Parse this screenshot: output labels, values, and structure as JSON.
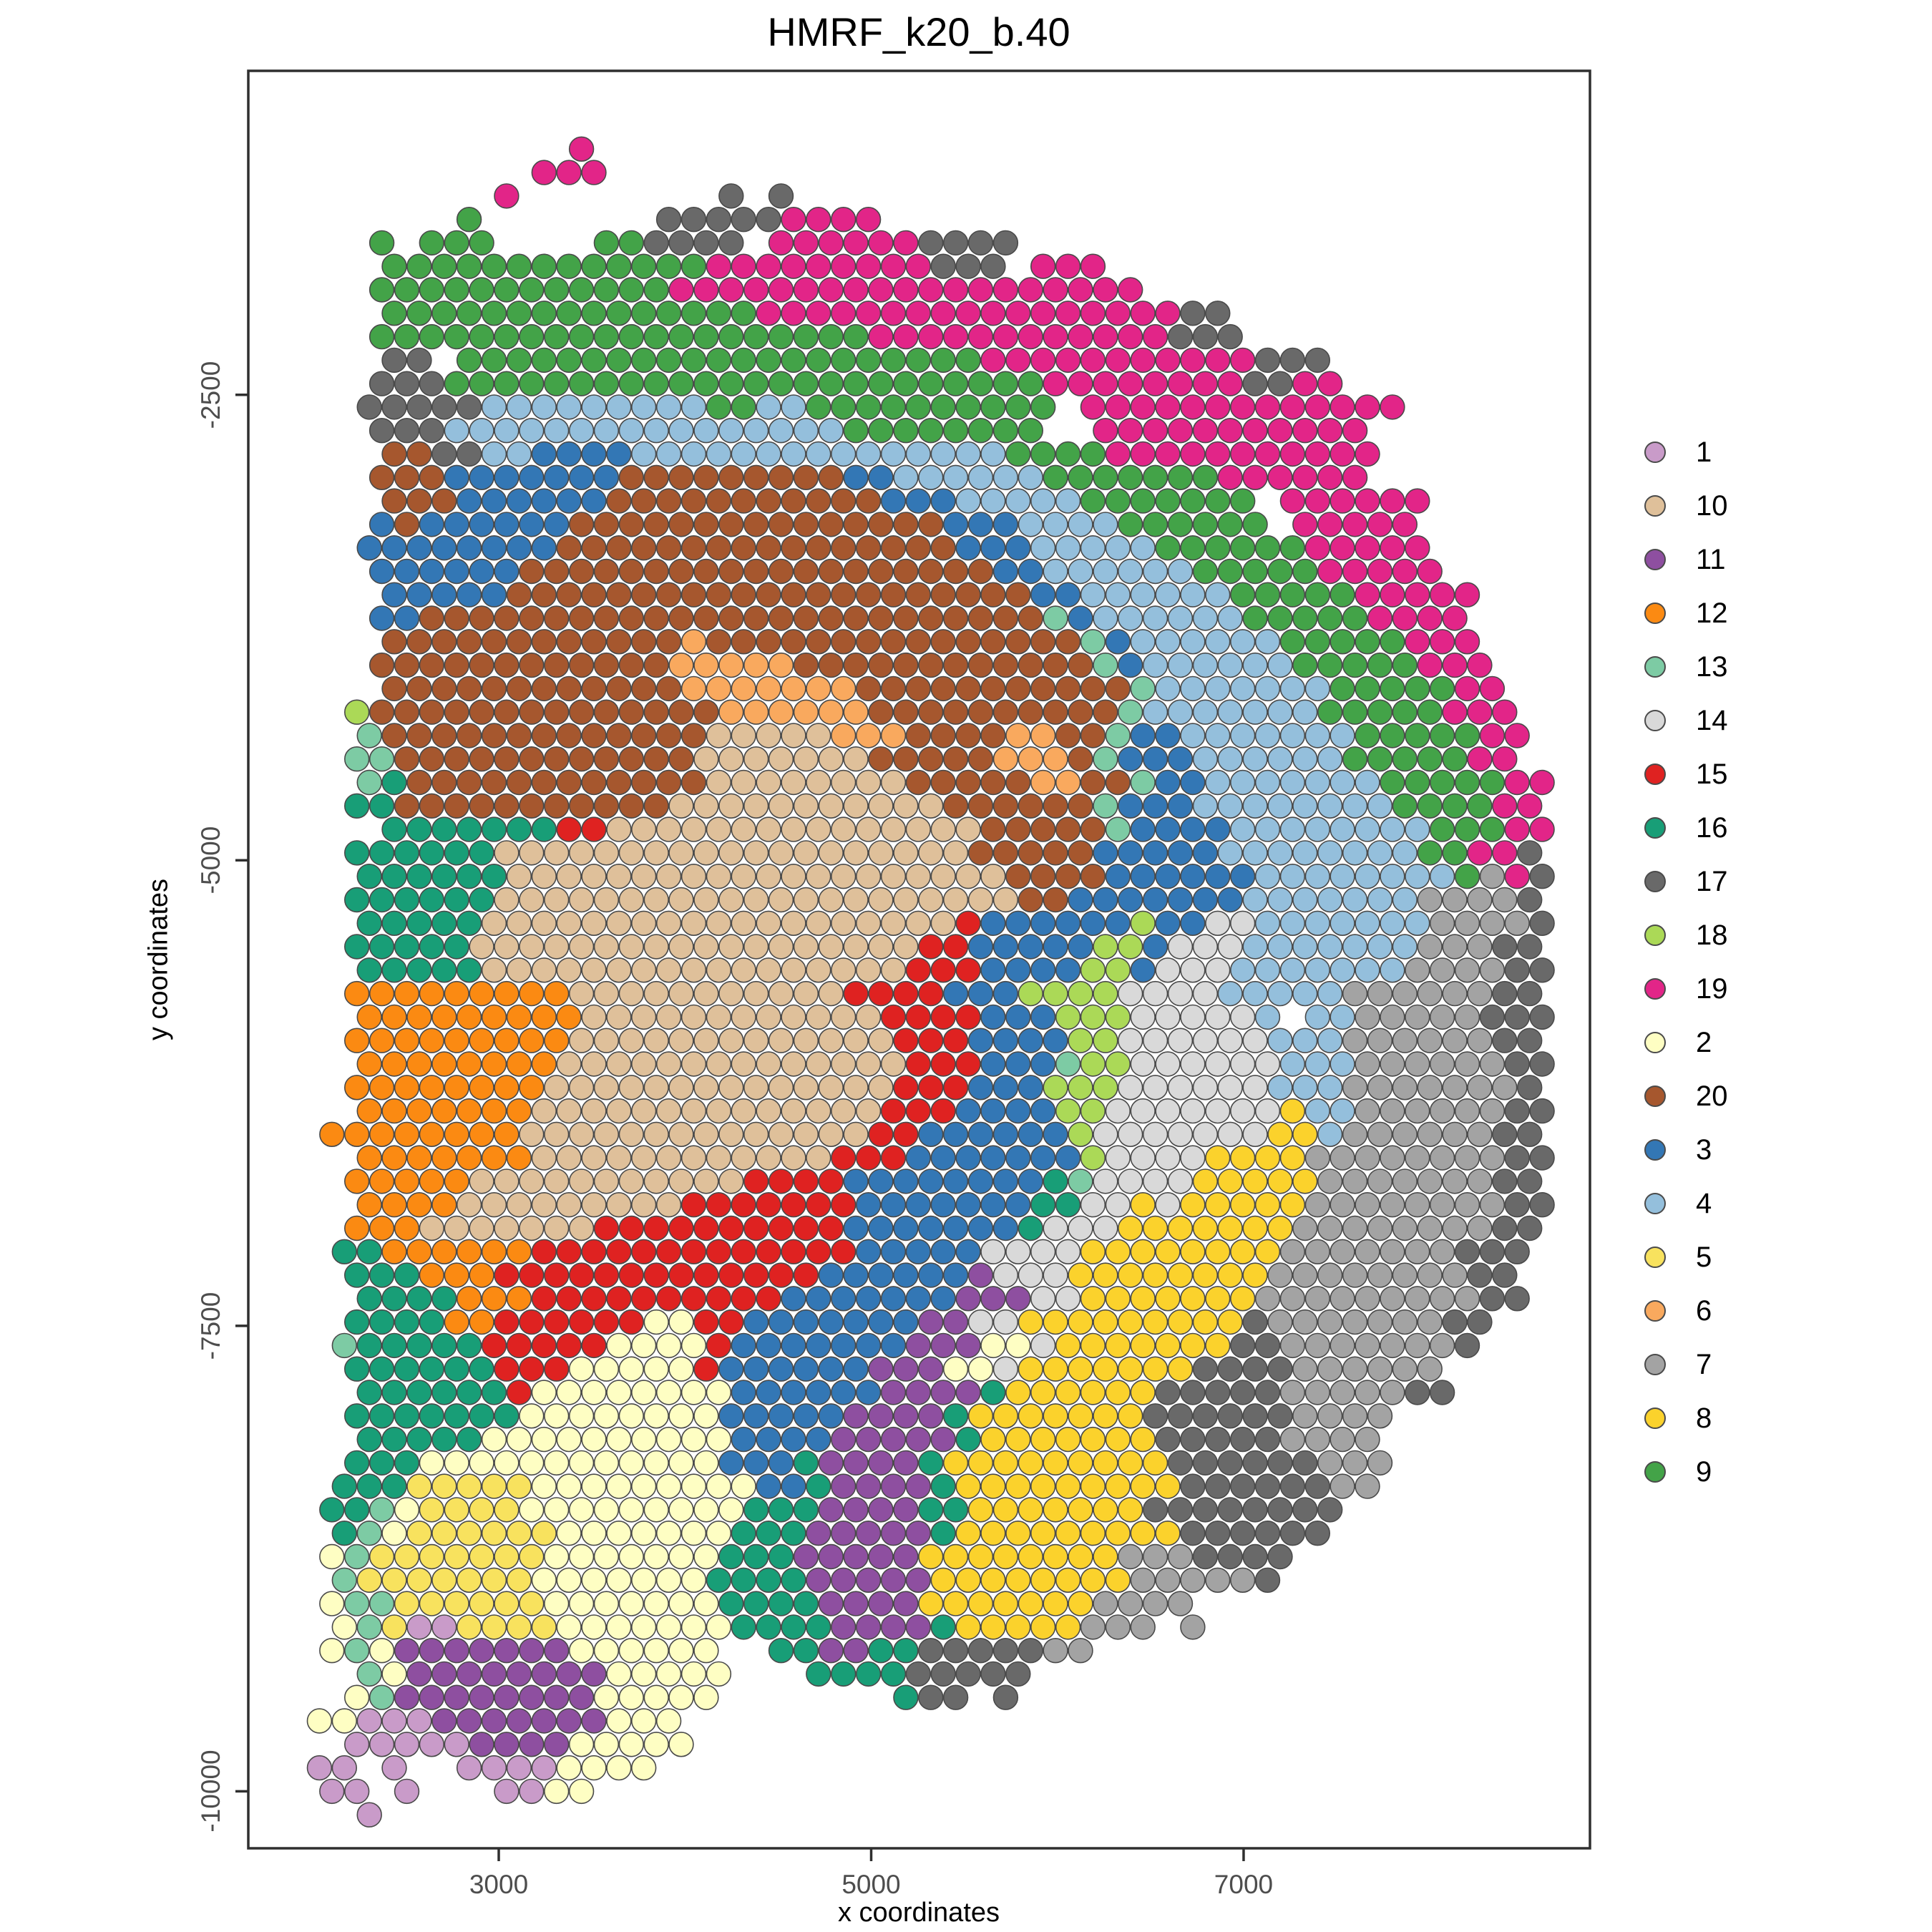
{
  "title": "HMRF_k20_b.40",
  "axes": {
    "x": {
      "label": "x coordinates",
      "ticks": [
        3000,
        5000,
        7000
      ]
    },
    "y": {
      "label": "y coordinates",
      "ticks": [
        -2500,
        -5000,
        -7500,
        -10000
      ]
    }
  },
  "legend": {
    "order": [
      "1",
      "10",
      "11",
      "12",
      "13",
      "14",
      "15",
      "16",
      "17",
      "18",
      "19",
      "2",
      "20",
      "3",
      "4",
      "5",
      "6",
      "7",
      "8",
      "9"
    ]
  },
  "chart_data": {
    "type": "scatter",
    "title": "HMRF_k20_b.40",
    "xlabel": "x coordinates",
    "ylabel": "y coordinates",
    "x_ticks": [
      3000,
      5000,
      7000
    ],
    "y_ticks": [
      -2500,
      -5000,
      -7500,
      -10000
    ],
    "x_range": [
      1655,
      8860
    ],
    "y_range": [
      -760,
      -10306
    ],
    "grid": {
      "x0": 1970,
      "dx": 134,
      "odd_row_offset": 67,
      "y0": -1180,
      "dy": -126,
      "dot_diameter": 130
    },
    "cluster_colors": {
      "1": "#C99BC9",
      "2": "#FEFEC3",
      "3": "#3377B5",
      "4": "#94BFDC",
      "5": "#F8E25E",
      "6": "#F9A95E",
      "7": "#A3A3A3",
      "8": "#FBD22C",
      "9": "#43A348",
      "10": "#DFC09A",
      "11": "#8E4FA0",
      "12": "#FB8A12",
      "13": "#7DCBA4",
      "14": "#D9D9D9",
      "15": "#DF2221",
      "16": "#189E77",
      "17": "#696969",
      "18": "#ABD957",
      "19": "#E22588",
      "20": "#A6572E"
    },
    "codes": {
      "a": "1",
      "b": "2",
      "c": "3",
      "d": "4",
      "e": "5",
      "f": "6",
      "g": "7",
      "h": "8",
      "i": "9",
      "j": "10",
      "k": "11",
      "l": "12",
      "m": "13",
      "n": "14",
      "o": "15",
      "p": "16",
      "q": "17",
      "r": "18",
      "s": "19",
      "t": "20"
    },
    "rows": [
      "...........s",
      ".........sss",
      "........s........q.q",
      "......i.......qqqqqssss",
      "...i.iii....iiqqqq.ssssssqqqq",
      "...iiiiiiiiiiiiisssssssssqqq.sss",
      "...iiiiiiiiiiiisssssssssssssssssss",
      "...iiiiiiiiiiiiiiisssssssssssssssssqq",
      "...iiiiiiiiiiiiiiiiiiiissssssssssssqqq",
      "...qq.iiiiiiiiiiiiiiiiiiiiisssssssssssqqq",
      "...qqqiiiiiiiiiiiiiiiiiiiiiiiissssssssqqss",
      "..qqqqqdddddddddiiddiiiiiiiiii.sssssssssssss",
      "...qqqddddddddddddddddiiiiiiii..sssssssssss",
      "...ttqqddccccdddddddddddddddiiiisssssssssss",
      "...tttccccccctttttttttccddddddiiiiiiissssss",
      "...tttcccccctttttttttttcccdddddiiiiiii.ssssss",
      "...ctcccccctttttttttttttttcccddddiiiiii.sssss",
      "..ccccccccttttttttttttttttcccdddddiiiiiisssss",
      "...cccccctttttttttttttttttttccddddddiiiiisssss",
      "...ccccctttttttttttttttttttttccddddddiiiiisssss",
      "...cctttttttttttttttttttttttttmcddddddiiiiissss",
      "...ttttttttttttftttttttttttttttmcddddddiiiiisss",
      "...ttttttttttttfffffttttttttttttmcddddddiiiiisss",
      "...ttttttttttttffffffftttttttttttmdddddddiiiiiss",
      "..rttttttttttttttffffffttttttttttmdddddddiiiiisss",
      "..mtttttttttttttjjjjjfffttttffttmccdddddddiiiiiss",
      "..mmttttttttttttjjjjjjjtttttffftmcccddddddiiiiiss",
      "..mpttttttttttttjjjjjjjjtttttffttmccdddddddiiiiiss",
      "..pptttttttttttjjjjjjjjjjjttttttmcccddddddddiiiiss",
      "...pppppppoojjjjjjjjjjjjjjjtttttmccccddddddddiiiss",
      "..ppppppjjjjjjjjjjjjjjjjjjjtttttcccccddddddddiissq",
      "..ppppppjjjjjjjjjjjjjjjjjjjjttttccccccddddddddigsq",
      "..ppppppjjjjjjjjjjjjjjjjjjjjjttcccccccdddddddggggq",
      "..pppppjjjjjjjjjjjjjjjjjjjoccccccrccnndddddddggggq",
      "..pppppjjjjjjjjjjjjjjjjjjoocccccrrcnnndddddddgggqq",
      "..pppppjjjjjjjjjjjjjjjjjoooccccrrcnnndddddddggggqq",
      "..llllllllljjjjjjjjjjjoooocccrrrrnnnndddddggggggqq",
      "..llllllllljjjjjjjjjjjjoooocccrrrnnnnnd.ddgggggqqq",
      "..llllllllljjjjjjjjjjjjjoooccccrrnnnnnndddggggggqq",
      "..lllllllljjjjjjjjjjjjjjooocccmrrnnnnnndddggggggqq",
      "..lllllllljjjjjjjjjjjjjjooocccrrrnnnnnndddgggggggq",
      "..llllllljjjjjjjjjjjjjjoooccccrrnnnnnnnhddggggggqq",
      ".lllllllljjjjjjjjjjjjjjooccccccrnnnnnnnhhdggggggqq",
      "..llllllljjjjjjjjjjjjooocccccccrnnnnhhhhggggggggqq",
      "..llllljjjjjjjjjjjooooccccccccpmnnnnhhhhhgggggggqq",
      "..lllljjjjjjjjjooooooocccccccppnnhnhhhhhggggggggqq",
      "..llljjjjjjjoooooooooocccccccpnnnhhhhhhhggggggggqq",
      ".ppllllllooooooooooooocccccnnnnhhhhhhhhgggggggqqq",
      "..pppllloooooooooooooccccccknnnhhhhhhhhggggggggqq",
      "..pppplllooooooooooccccccckkknnhhhhhhhgggggggggqq",
      "..pppplloooooobbooccccccckknnhhhhhhhhhqgggggggqq",
      ".mpppppooooobbbboccccccckkkbbnhhhhhhhqqgggggggq",
      "..ppppppooobbbbbocccccckkkbbnhhhhhhhqqqqgggggg",
      "..ppppppobbbbbbbbcccccckkkkphhhhhhqqqqqgggggqq",
      "..pppppppbbbbbbbbccccckkkkphhhhhhhqqqqqqgggg",
      "..pppppbbbbbbbbbbcccckkkkkphhhhhhhqqqqqgggg",
      "..pppbbbbbbbbbbbbcccpkkkkphhhhhhhhhqqqqqqggg",
      ".pppeeeeebbbbbbbbbccpkkkkphhhhhhhhhqqqqqqgg",
      ".ppmbeeeebbbbbbbbbpppkkkkpphhhhhhhqqqqqqqq",
      ".pmbeeeeeebbbbbbbpppkkkkkphhhhhhhhhqqqqqq",
      ".bmeeeeeeebbbbbbbpppkkkkkhhhhhhhhgggqqqq",
      ".meeeeeeebbbbbbbppppkkkkkhhhhhhhhgggggq",
      ".bmmeeeeeebbbbbbbppppkkkkhhhhhhhgggg",
      ".bmeaaeeeebbbbbbbppppkkkkphhhhhggg.g",
      ".bmbkkkkkkkbbbbbb..ppkkppqqqqqgg",
      "..mbkkkkkkkkbbbbb...ppppqqqqq",
      "..bmkkkkkkkkbbbbb.......pqq.q",
      "bbaaakkkkkkkbbb",
      "..aaaaakkkkbbbbb",
      "aa.a..aaaabbbb",
      ".aa.a...aabb",
      "..a"
    ]
  }
}
